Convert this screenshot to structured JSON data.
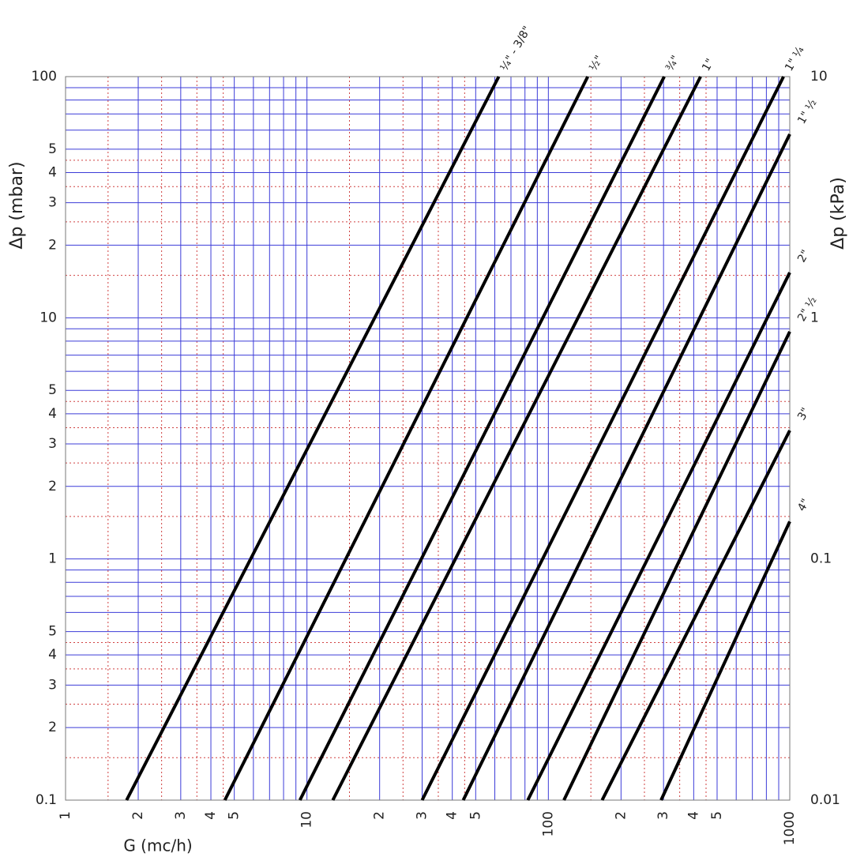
{
  "chart_data": {
    "type": "line",
    "log_x": true,
    "log_y": true,
    "xlabel": "G (mc/h)",
    "ylabel": "Δp (mbar)",
    "y2label": "Δp (kPa)",
    "xlim": [
      1,
      1000
    ],
    "ylim": [
      0.1,
      100
    ],
    "y2lim": [
      0.01,
      10
    ],
    "xticks": [
      1,
      2,
      3,
      4,
      5,
      10,
      {
        "value": 20,
        "label": "2"
      },
      {
        "value": 30,
        "label": "3"
      },
      {
        "value": 40,
        "label": "4"
      },
      {
        "value": 50,
        "label": "5"
      },
      100,
      {
        "value": 200,
        "label": "2"
      },
      {
        "value": 300,
        "label": "3"
      },
      {
        "value": 400,
        "label": "4"
      },
      {
        "value": 500,
        "label": "5"
      },
      1000
    ],
    "yticks": [
      0.1,
      {
        "value": 0.2,
        "label": "2"
      },
      {
        "value": 0.3,
        "label": "3"
      },
      {
        "value": 0.4,
        "label": "4"
      },
      {
        "value": 0.5,
        "label": "5"
      },
      1,
      2,
      3,
      4,
      5,
      10,
      {
        "value": 20,
        "label": "2"
      },
      {
        "value": 30,
        "label": "3"
      },
      {
        "value": 40,
        "label": "4"
      },
      {
        "value": 50,
        "label": "5"
      },
      100
    ],
    "y2ticks": [
      0.01,
      0.1,
      1,
      10
    ],
    "xgrid": [
      6,
      7,
      8,
      9,
      60,
      70,
      80,
      90,
      600,
      700,
      800,
      900
    ],
    "ygrid": [
      0.6,
      0.7,
      0.8,
      0.9,
      6,
      7,
      8,
      9,
      60,
      70,
      80,
      90
    ],
    "xgrid_minor": [
      1.5,
      2.5,
      3.5,
      4.5,
      15,
      25,
      35,
      45,
      150,
      250,
      350,
      450
    ],
    "ygrid_minor": [
      0.15,
      0.25,
      0.35,
      0.45,
      1.5,
      2.5,
      3.5,
      4.5,
      15,
      25,
      35,
      45
    ],
    "grid_color": "#3c3cd8",
    "grid_minor_color": "#d04040",
    "line_color": "#000000",
    "series": [
      {
        "name": "¼\" - 3/8\"",
        "x": [
          1.79,
          62.3
        ],
        "values": [
          0.1,
          100
        ]
      },
      {
        "name": "½\"",
        "x": [
          4.57,
          145.6
        ],
        "values": [
          0.1,
          100
        ]
      },
      {
        "name": "¾\"",
        "x": [
          9.35,
          302
        ],
        "values": [
          0.1,
          100
        ]
      },
      {
        "name": "1\"",
        "x": [
          12.8,
          427
        ],
        "values": [
          0.1,
          100
        ]
      },
      {
        "name": "1\" ¼",
        "x": [
          30,
          942
        ],
        "values": [
          0.1,
          100
        ]
      },
      {
        "name": "1\" ½",
        "x": [
          44.4,
          1000
        ],
        "values": [
          0.1,
          57.7
        ]
      },
      {
        "name": "2\"",
        "x": [
          82.2,
          1000
        ],
        "values": [
          0.1,
          15.4
        ]
      },
      {
        "name": "2\" ½",
        "x": [
          116,
          1000
        ],
        "values": [
          0.1,
          8.76
        ]
      },
      {
        "name": "3\"",
        "x": [
          167,
          1000
        ],
        "values": [
          0.1,
          3.41
        ]
      },
      {
        "name": "4\"",
        "x": [
          293,
          1000
        ],
        "values": [
          0.1,
          1.43
        ]
      }
    ]
  }
}
